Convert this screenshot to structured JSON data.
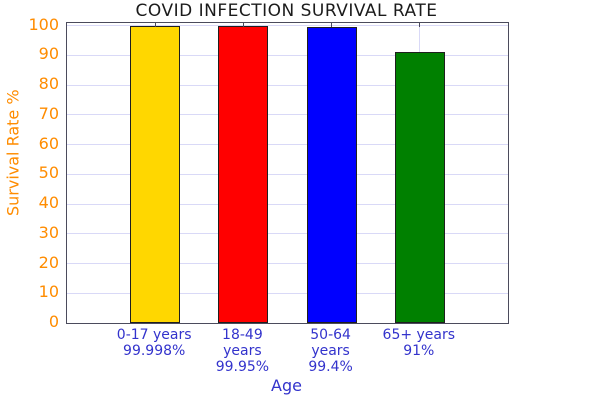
{
  "chart_data": {
    "type": "bar",
    "title": "COVID INFECTION SURVIVAL RATE",
    "xlabel": "Age",
    "ylabel": "Survival Rate %",
    "categories": [
      "0-17 years",
      "18-49 years",
      "50-64 years",
      "65+ years"
    ],
    "values": [
      99.998,
      99.95,
      99.4,
      91
    ],
    "value_labels": [
      "99.998%",
      "99.95%",
      "99.4%",
      "91%"
    ],
    "category_label_lines": [
      [
        "0-17 years",
        "99.998%"
      ],
      [
        "18-49",
        "years",
        "99.95%"
      ],
      [
        "50-64",
        "years",
        "99.4%"
      ],
      [
        "65+ years",
        "91%"
      ]
    ],
    "bar_colors": [
      "#ffd700",
      "#ff0000",
      "#0000ff",
      "#008000"
    ],
    "yticks": [
      0,
      10,
      20,
      30,
      40,
      50,
      60,
      70,
      80,
      90,
      100
    ],
    "ylim": [
      0,
      100.85
    ],
    "grid": true,
    "legend_position": "none",
    "colors": {
      "y_axis_text": "#ff8c00",
      "x_axis_text": "#3333cc",
      "title_text": "#1b1b1b",
      "gridline": "#d9d9f7",
      "plot_border": "#4b4b5c"
    }
  }
}
